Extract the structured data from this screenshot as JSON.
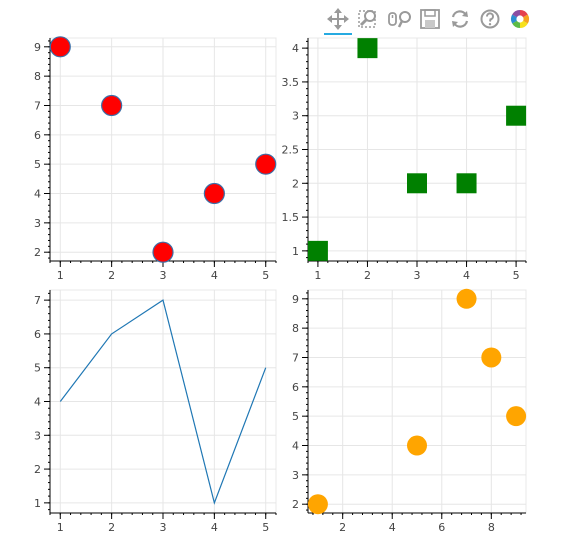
{
  "toolbar": {
    "tools": [
      {
        "name": "pan-tool",
        "icon": "pan-icon",
        "active": true
      },
      {
        "name": "box-zoom-tool",
        "icon": "box-zoom-icon",
        "active": false
      },
      {
        "name": "wheel-zoom-tool",
        "icon": "wheel-zoom-icon",
        "active": false
      },
      {
        "name": "save-tool",
        "icon": "save-icon",
        "active": false
      },
      {
        "name": "reset-tool",
        "icon": "reset-icon",
        "active": false
      },
      {
        "name": "help-tool",
        "icon": "help-icon",
        "active": false
      },
      {
        "name": "bokeh-logo",
        "icon": "bokeh-logo-icon",
        "active": false
      }
    ]
  },
  "chart_data": [
    {
      "type": "scatter",
      "marker": "circle",
      "color": "#ff0000",
      "line_color": "#3b6fa8",
      "x": [
        1,
        2,
        3,
        4,
        5
      ],
      "y": [
        9,
        7,
        2,
        4,
        5
      ],
      "xlim": [
        0.8,
        5.2
      ],
      "ylim": [
        1.7,
        9.3
      ],
      "xticks": [
        1,
        2,
        3,
        4,
        5
      ],
      "yticks": [
        2,
        3,
        4,
        5,
        6,
        7,
        8,
        9
      ],
      "grid": true,
      "title": "",
      "xlabel": "",
      "ylabel": ""
    },
    {
      "type": "scatter",
      "marker": "square",
      "color": "#008000",
      "x": [
        1,
        2,
        3,
        4,
        5
      ],
      "y": [
        1,
        4,
        2,
        2,
        3
      ],
      "xlim": [
        0.8,
        5.2
      ],
      "ylim": [
        0.85,
        4.15
      ],
      "xticks": [
        1,
        2,
        3,
        4,
        5
      ],
      "yticks": [
        1,
        1.5,
        2,
        2.5,
        3,
        3.5,
        4
      ],
      "grid": true,
      "title": "",
      "xlabel": "",
      "ylabel": ""
    },
    {
      "type": "line",
      "color": "#1f77b4",
      "x": [
        1,
        2,
        3,
        4,
        5
      ],
      "y": [
        4,
        6,
        7,
        1,
        5
      ],
      "xlim": [
        0.8,
        5.2
      ],
      "ylim": [
        0.7,
        7.3
      ],
      "xticks": [
        1,
        2,
        3,
        4,
        5
      ],
      "yticks": [
        1,
        2,
        3,
        4,
        5,
        6,
        7
      ],
      "grid": true,
      "title": "",
      "xlabel": "",
      "ylabel": ""
    },
    {
      "type": "scatter",
      "marker": "circle",
      "color": "#ffa500",
      "x": [
        1,
        5,
        7,
        8,
        9
      ],
      "y": [
        2,
        4,
        9,
        7,
        5
      ],
      "xlim": [
        0.6,
        9.4
      ],
      "ylim": [
        1.7,
        9.3
      ],
      "xticks": [
        2,
        4,
        6,
        8
      ],
      "yticks": [
        2,
        3,
        4,
        5,
        6,
        7,
        8,
        9
      ],
      "grid": true,
      "title": "",
      "xlabel": "",
      "ylabel": ""
    }
  ]
}
